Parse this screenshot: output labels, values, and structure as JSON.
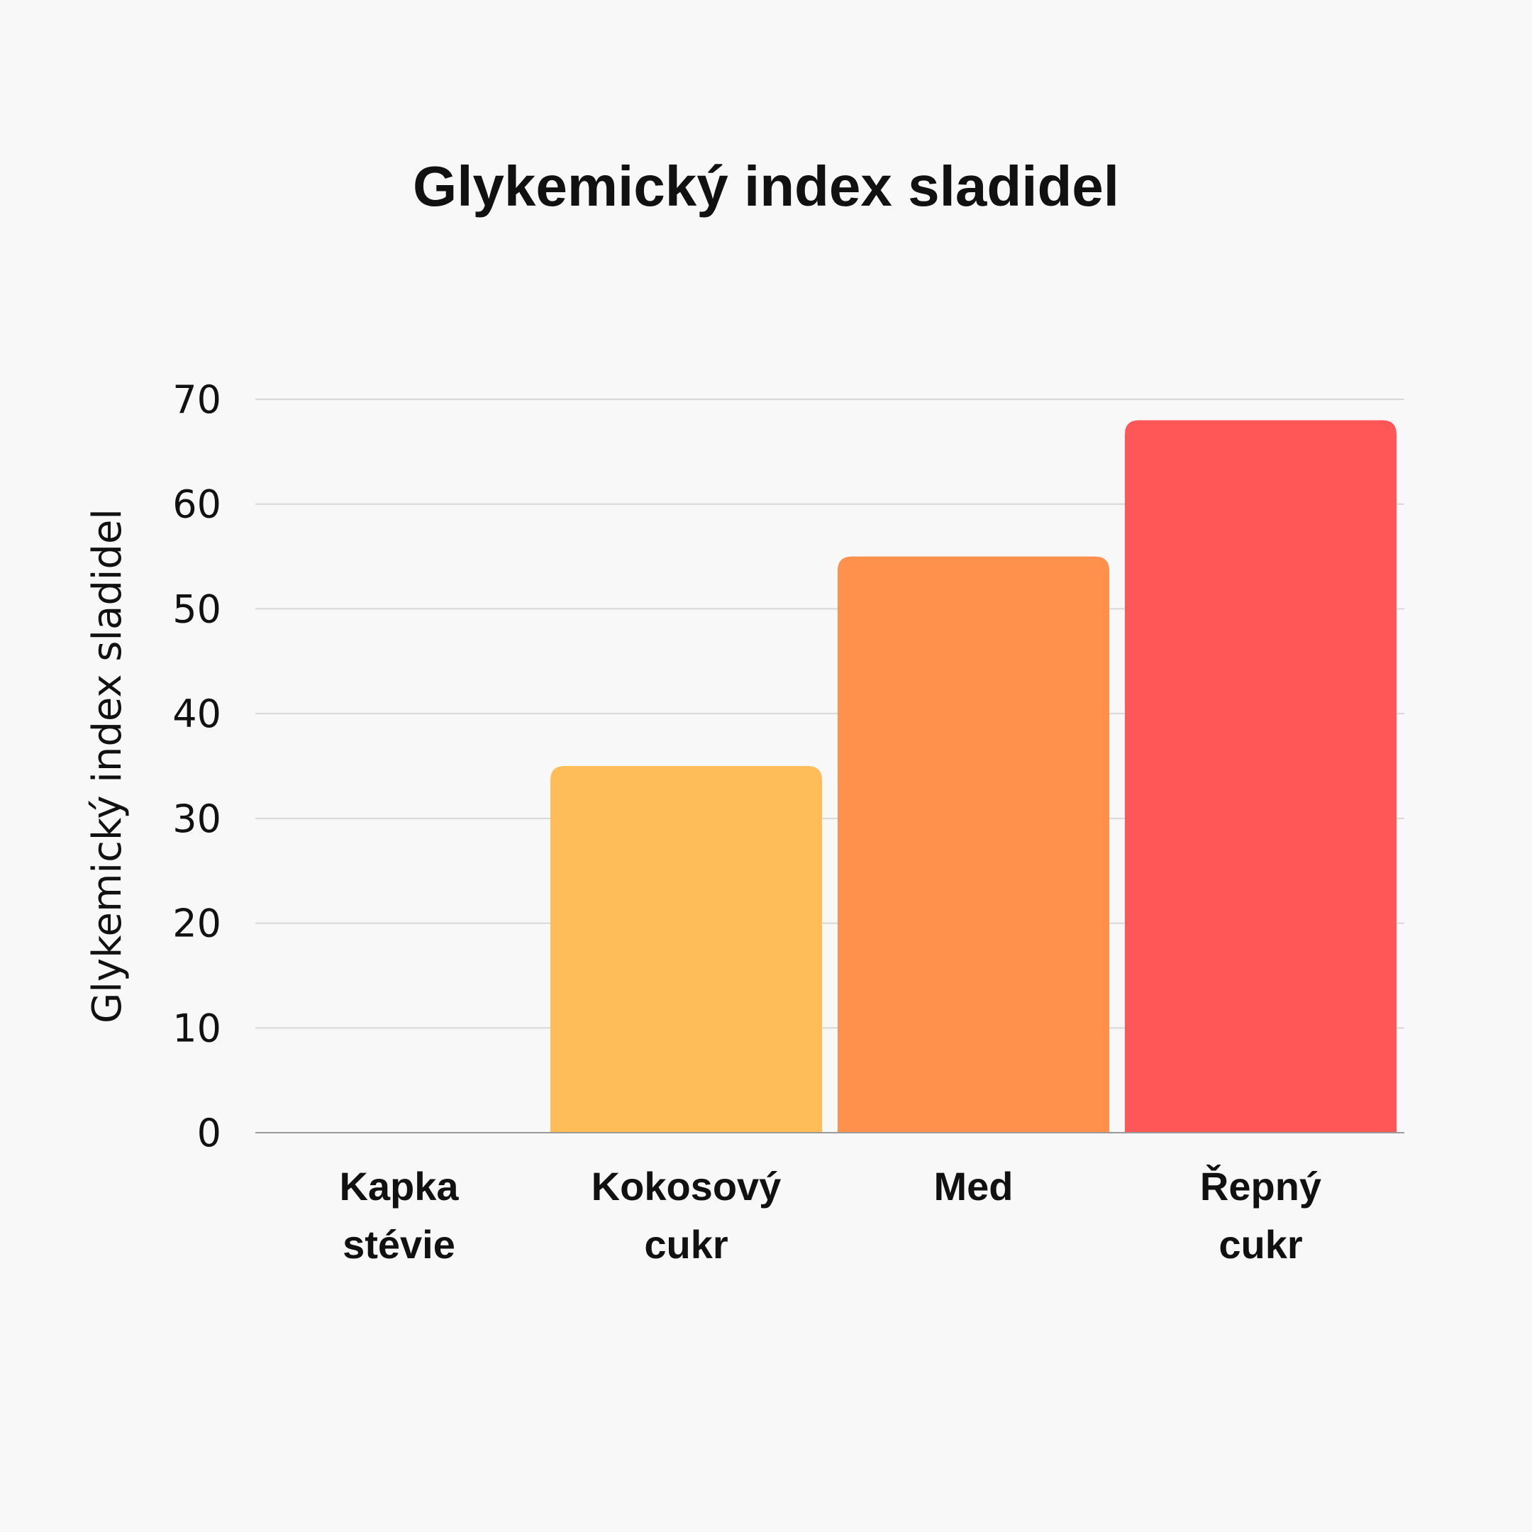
{
  "chart_data": {
    "type": "bar",
    "title": "Glykemický index sladidel",
    "xlabel": "",
    "ylabel": "Glykemický index sladidel",
    "ylim": [
      0,
      70
    ],
    "yticks": [
      "0",
      "10",
      "20",
      "30",
      "40",
      "50",
      "60",
      "70"
    ],
    "grid": true,
    "legend": "none",
    "categories": [
      [
        "Kapka",
        "stévie"
      ],
      [
        "Kokosový",
        "cukr"
      ],
      [
        "Med"
      ],
      [
        "Řepný",
        "cukr"
      ]
    ],
    "values": [
      0,
      35,
      55,
      68
    ],
    "colors": [
      "#ffbd59",
      "#ffbd59",
      "#ff914d",
      "#ff5757"
    ]
  }
}
